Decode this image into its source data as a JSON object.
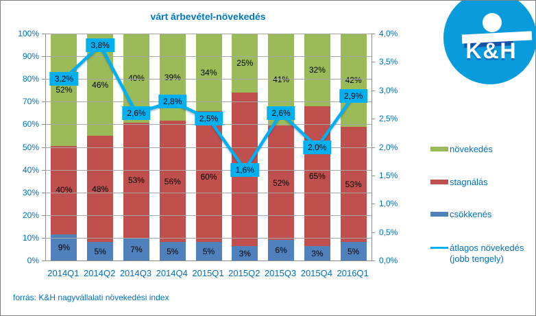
{
  "title": "várt árbevétel-növekedés",
  "logo": {
    "text": "K&H"
  },
  "footer": "forrás: K&H nagyvállalati növekedési index",
  "colors": {
    "growth_green": "#9BBB59",
    "stagnation_red": "#C0504D",
    "decline_blue": "#4F81BD",
    "line_cyan": "#00B0F0",
    "text_blue": "#0070C0",
    "title_blue": "#0077C6",
    "logo_blue": "#089CDC",
    "logo_navy": "#17479E",
    "gridline": "#A6A6A6",
    "axis_gray": "#8C8C8C"
  },
  "legend": {
    "items": [
      {
        "label": "növekedés",
        "swatch": "box",
        "color": "#9BBB59"
      },
      {
        "label": "stagnálás",
        "swatch": "box",
        "color": "#C0504D"
      },
      {
        "label": "csökkenés",
        "swatch": "box",
        "color": "#4F81BD"
      },
      {
        "label": "átlagos növekedés (jobb tengely)",
        "swatch": "line",
        "color": "#00B0F0"
      }
    ]
  },
  "chart_data": {
    "type": "stacked-bar+line",
    "title": "várt árbevétel-növekedés",
    "categories": [
      "2014Q1",
      "2014Q2",
      "2014Q3",
      "2014Q4",
      "2015Q1",
      "2015Q2",
      "2015Q3",
      "2015Q4",
      "2016Q1"
    ],
    "series": [
      {
        "key": "csokkenes",
        "name": "csökkenés",
        "color": "#4F81BD",
        "values": [
          9,
          5,
          7,
          5,
          5,
          3,
          6,
          3,
          5
        ],
        "labels": [
          "9%",
          "5%",
          "7%",
          "5%",
          "5%",
          "3%",
          "6%",
          "3%",
          "5%"
        ]
      },
      {
        "key": "stagnalas",
        "name": "stagnálás",
        "color": "#C0504D",
        "values": [
          40,
          48,
          53,
          56,
          60,
          72,
          52,
          65,
          53
        ],
        "labels": [
          "40%",
          "48%",
          "53%",
          "56%",
          "60%",
          "72%",
          "52%",
          "65%",
          "53%"
        ]
      },
      {
        "key": "novekedes",
        "name": "növekedés",
        "color": "#9BBB59",
        "values": [
          52,
          46,
          40,
          39,
          34,
          25,
          41,
          32,
          42
        ],
        "labels": [
          "52%",
          "46%",
          "40%",
          "39%",
          "34%",
          "25%",
          "41%",
          "32%",
          "42%"
        ]
      }
    ],
    "line_series": {
      "name": "átlagos növekedés (jobb tengely)",
      "color": "#00B0F0",
      "values": [
        3.2,
        3.8,
        2.6,
        2.8,
        2.5,
        1.6,
        2.6,
        2.0,
        2.9
      ],
      "labels": [
        "3,2%",
        "3,8%",
        "2,6%",
        "2,8%",
        "2,5%",
        "1,6%",
        "2,6%",
        "2,0%",
        "2,9%"
      ]
    },
    "left_axis": {
      "min": 0,
      "max": 100,
      "ticks": [
        "0%",
        "10%",
        "20%",
        "30%",
        "40%",
        "50%",
        "60%",
        "70%",
        "80%",
        "90%",
        "100%"
      ]
    },
    "right_axis": {
      "min": 0,
      "max": 4,
      "ticks": [
        "0,0%",
        "0,5%",
        "1,0%",
        "1,5%",
        "2,0%",
        "2,5%",
        "3,0%",
        "3,5%",
        "4,0%"
      ]
    },
    "legend_position": "right",
    "grid": "horizontal-major"
  }
}
